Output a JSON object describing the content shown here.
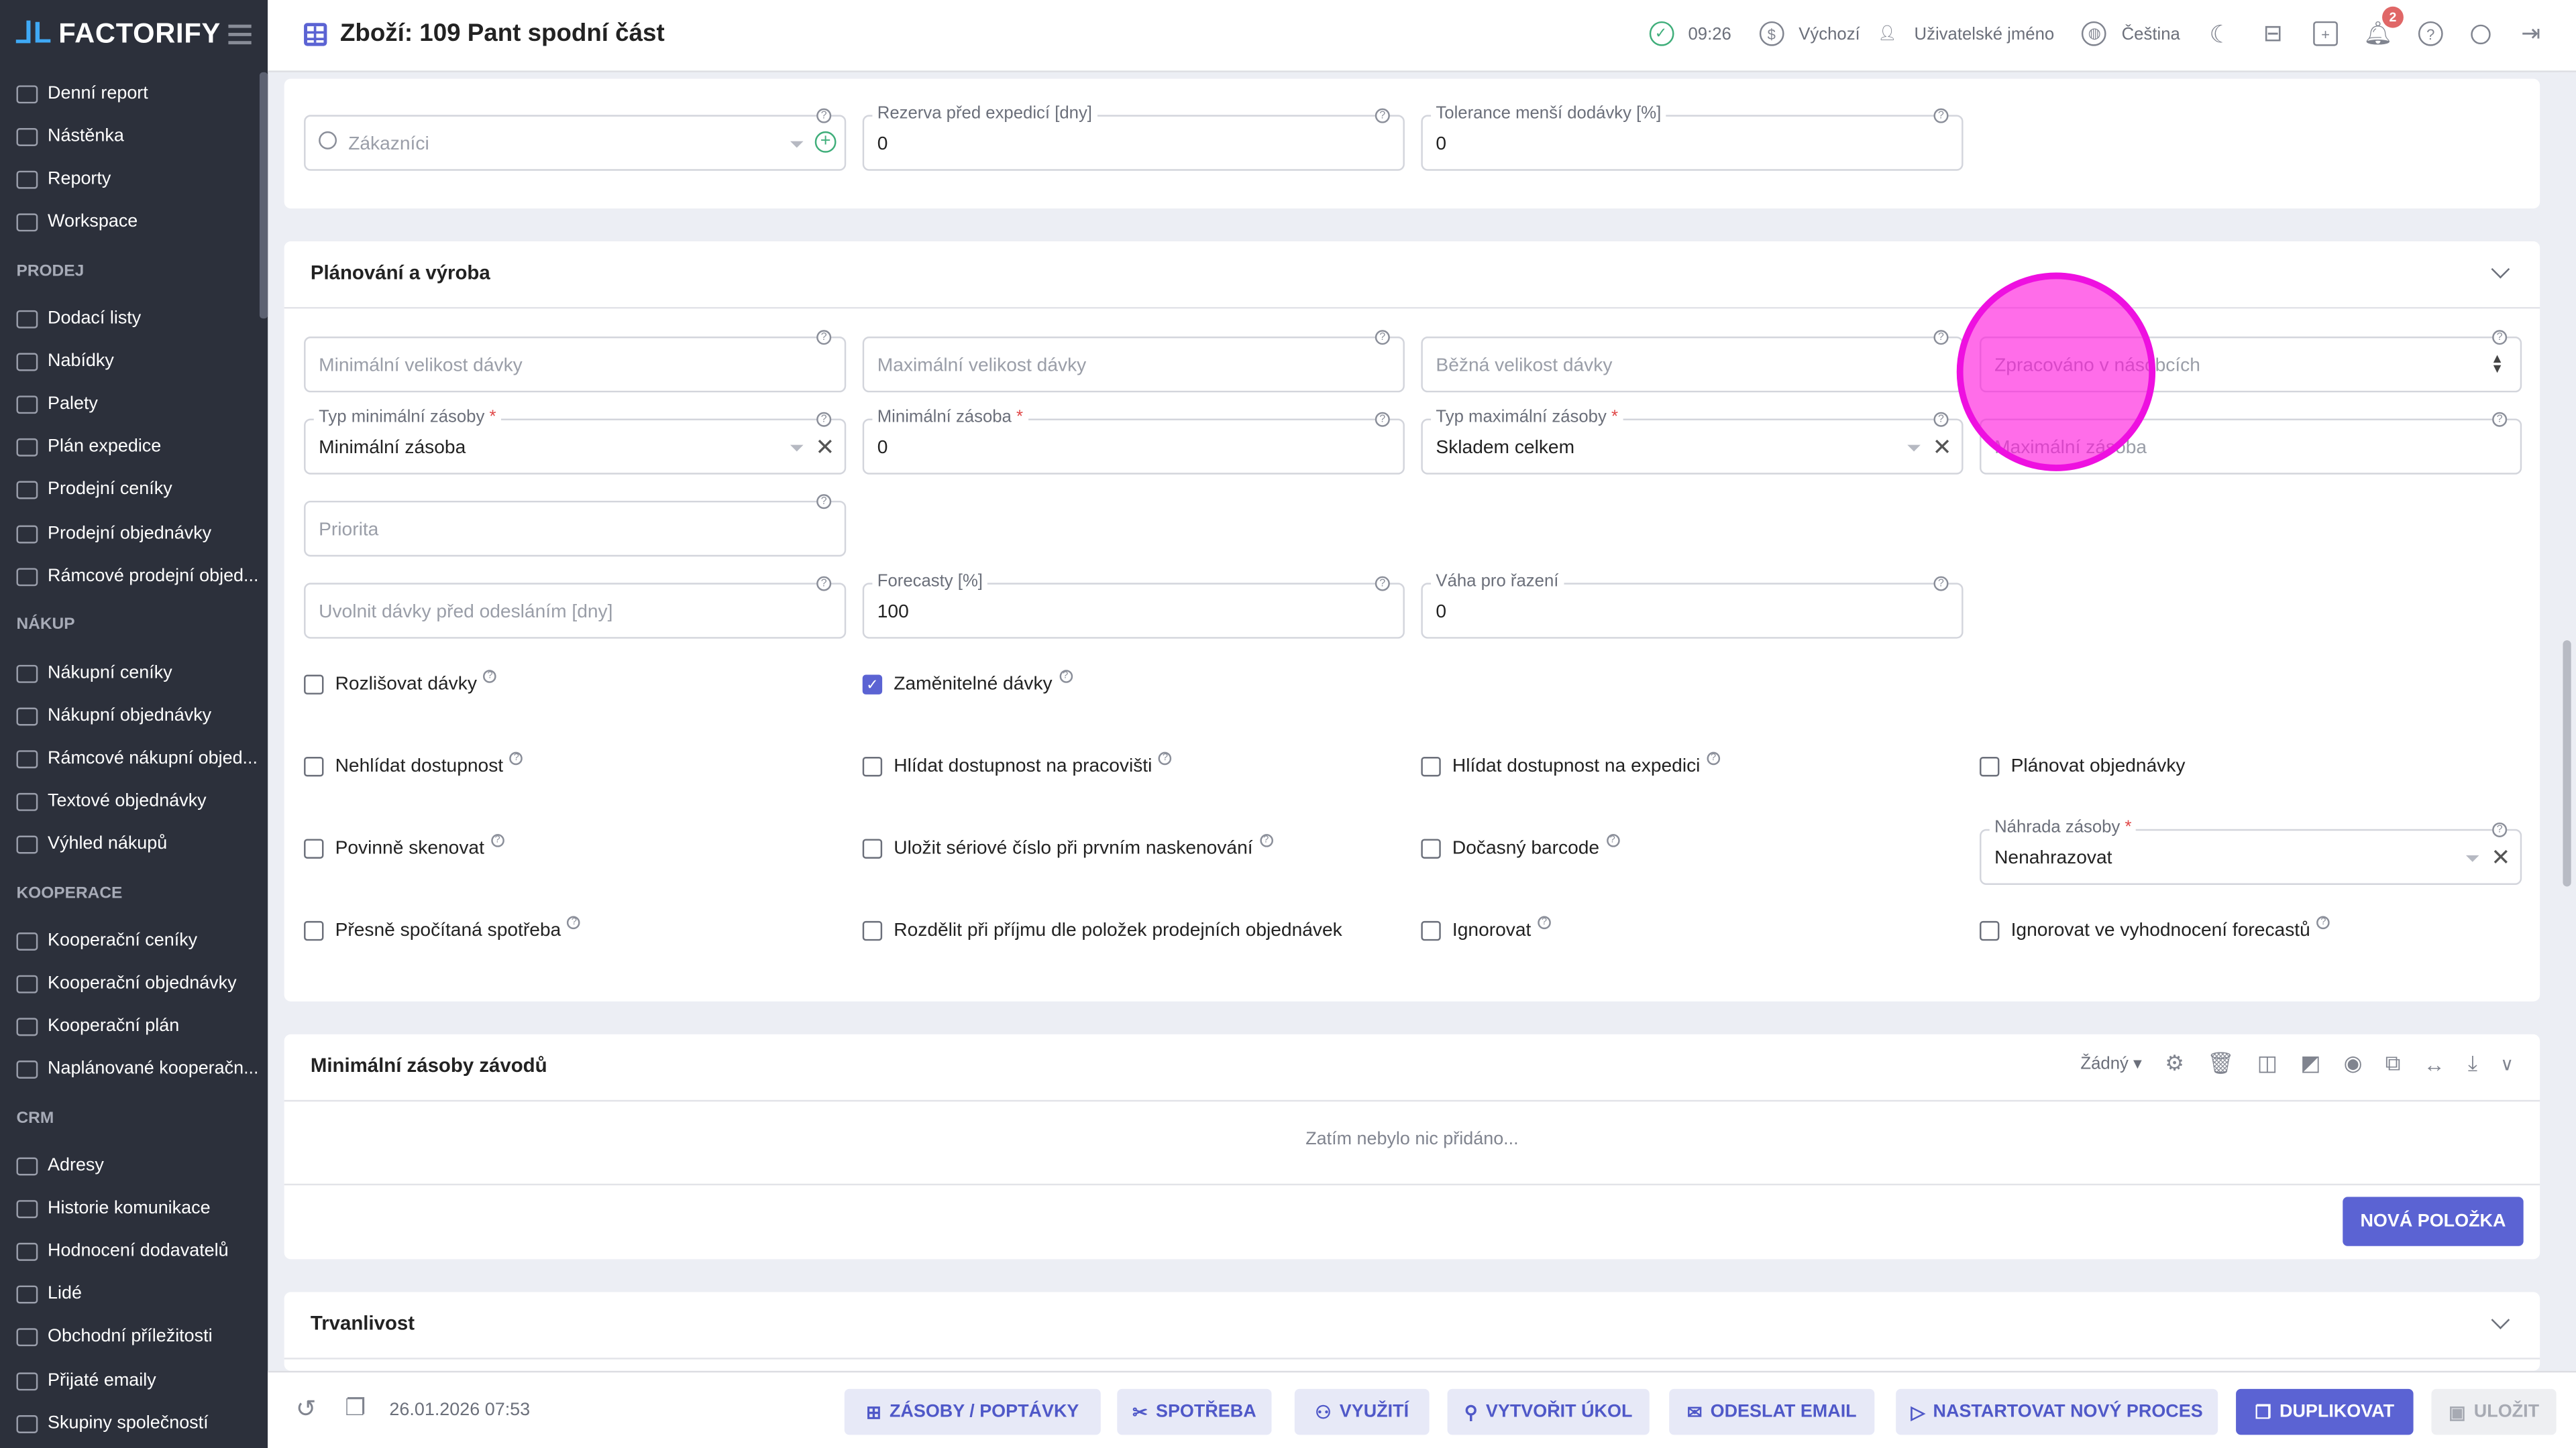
{
  "app": {
    "logo": "FACTORIFY",
    "title": "Zboží: 109 Pant spodní část"
  },
  "topbar": {
    "time": "09:26",
    "currency": "Výchozí",
    "user": "Uživatelské jméno",
    "language": "Čeština",
    "notifications": "2"
  },
  "sidebar": [
    {
      "label": "Denní report"
    },
    {
      "label": "Nástěnka"
    },
    {
      "label": "Reporty"
    },
    {
      "label": "Workspace"
    },
    {
      "section": "PRODEJ"
    },
    {
      "label": "Dodací listy"
    },
    {
      "label": "Nabídky"
    },
    {
      "label": "Palety"
    },
    {
      "label": "Plán expedice"
    },
    {
      "label": "Prodejní ceníky"
    },
    {
      "label": "Prodejní objednávky"
    },
    {
      "label": "Rámcové prodejní objed..."
    },
    {
      "section": "NÁKUP"
    },
    {
      "label": "Nákupní ceníky"
    },
    {
      "label": "Nákupní objednávky"
    },
    {
      "label": "Rámcové nákupní objed..."
    },
    {
      "label": "Textové objednávky"
    },
    {
      "label": "Výhled nákupů"
    },
    {
      "section": "KOOPERACE"
    },
    {
      "label": "Kooperační ceníky"
    },
    {
      "label": "Kooperační objednávky"
    },
    {
      "label": "Kooperační plán"
    },
    {
      "label": "Naplánované kooperačn..."
    },
    {
      "section": "CRM"
    },
    {
      "label": "Adresy"
    },
    {
      "label": "Historie komunikace"
    },
    {
      "label": "Hodnocení dodavatelů"
    },
    {
      "label": "Lidé"
    },
    {
      "label": "Obchodní příležitosti"
    },
    {
      "label": "Přijaté emaily"
    },
    {
      "label": "Skupiny společností"
    }
  ],
  "top_fields": [
    {
      "placeholder": "Zákazníci",
      "search": true,
      "add": true
    },
    {
      "label": "Rezerva před expedicí [dny]",
      "value": "0"
    },
    {
      "label": "Tolerance menší dodávky [%]",
      "value": "0"
    }
  ],
  "planning": {
    "title": "Plánování a výroba",
    "fields": [
      {
        "placeholder": "Minimální velikost dávky"
      },
      {
        "placeholder": "Maximální velikost dávky"
      },
      {
        "placeholder": "Běžná velikost dávky"
      },
      {
        "placeholder": "Zpracováno v násobcích",
        "stepper": true
      },
      {
        "label": "Typ minimální zásoby",
        "required": true,
        "value": "Minimální zásoba",
        "select": true
      },
      {
        "label": "Minimální zásoba",
        "required": true,
        "value": "0"
      },
      {
        "label": "Typ maximální zásoby",
        "required": true,
        "value": "Skladem celkem",
        "select": true
      },
      {
        "placeholder": "Maximální zásoba"
      },
      {
        "placeholder": "Priorita"
      },
      {
        "placeholder": "Uvolnit dávky před odesláním [dny]"
      },
      {
        "label": "Forecasty [%]",
        "value": "100"
      },
      {
        "label": "Váha pro řazení",
        "value": "0"
      },
      {
        "label": "Náhrada zásoby",
        "required": true,
        "value": "Nenahrazovat",
        "select": true
      }
    ],
    "checkboxes": [
      {
        "label": "Rozlišovat dávky",
        "checked": false,
        "help": true
      },
      {
        "label": "Zaměnitelné dávky",
        "checked": true,
        "help": true
      },
      {
        "label": "Nehlídat dostupnost",
        "checked": false,
        "help": true
      },
      {
        "label": "Hlídat dostupnost na pracovišti",
        "checked": false,
        "help": true
      },
      {
        "label": "Hlídat dostupnost na expedici",
        "checked": false,
        "help": true
      },
      {
        "label": "Plánovat objednávky",
        "checked": false,
        "help": false
      },
      {
        "label": "Povinně skenovat",
        "checked": false,
        "help": true
      },
      {
        "label": "Uložit sériové číslo při prvním naskenování",
        "checked": false,
        "help": true
      },
      {
        "label": "Dočasný barcode",
        "checked": false,
        "help": true
      },
      {
        "label": "Přesně spočítaná spotřeba",
        "checked": false,
        "help": true
      },
      {
        "label": "Rozdělit při příjmu dle položek prodejních objednávek",
        "checked": false,
        "help": false
      },
      {
        "label": "Ignorovat",
        "checked": false,
        "help": true
      },
      {
        "label": "Ignorovat ve vyhodnocení forecastů",
        "checked": false,
        "help": true
      }
    ]
  },
  "min_stock": {
    "title": "Minimální zásoby závodů",
    "filter": "Žádný",
    "empty": "Zatím nebylo nic přidáno...",
    "new_item": "NOVÁ POLOŽKA"
  },
  "durability": {
    "title": "Trvanlivost"
  },
  "bottom": {
    "date": "26.01.2026 07:53",
    "buttons": [
      {
        "label": "ZÁSOBY / POPTÁVKY",
        "icon": "box-icon"
      },
      {
        "label": "SPOTŘEBA",
        "icon": "scissors-icon"
      },
      {
        "label": "VYUŽITÍ",
        "icon": "network-icon"
      },
      {
        "label": "VYTVOŘIT ÚKOL",
        "icon": "pin-icon"
      },
      {
        "label": "ODESLAT EMAIL",
        "icon": "mail-icon"
      },
      {
        "label": "NASTARTOVAT NOVÝ PROCES",
        "icon": "play-icon"
      },
      {
        "label": "DUPLIKOVAT",
        "icon": "copy-icon"
      },
      {
        "label": "ULOŽIT",
        "icon": "save-icon"
      }
    ]
  },
  "colors": {
    "accent": "#5b63d3",
    "sidebar": "#2c303b",
    "highlight": "#ff14dc"
  }
}
